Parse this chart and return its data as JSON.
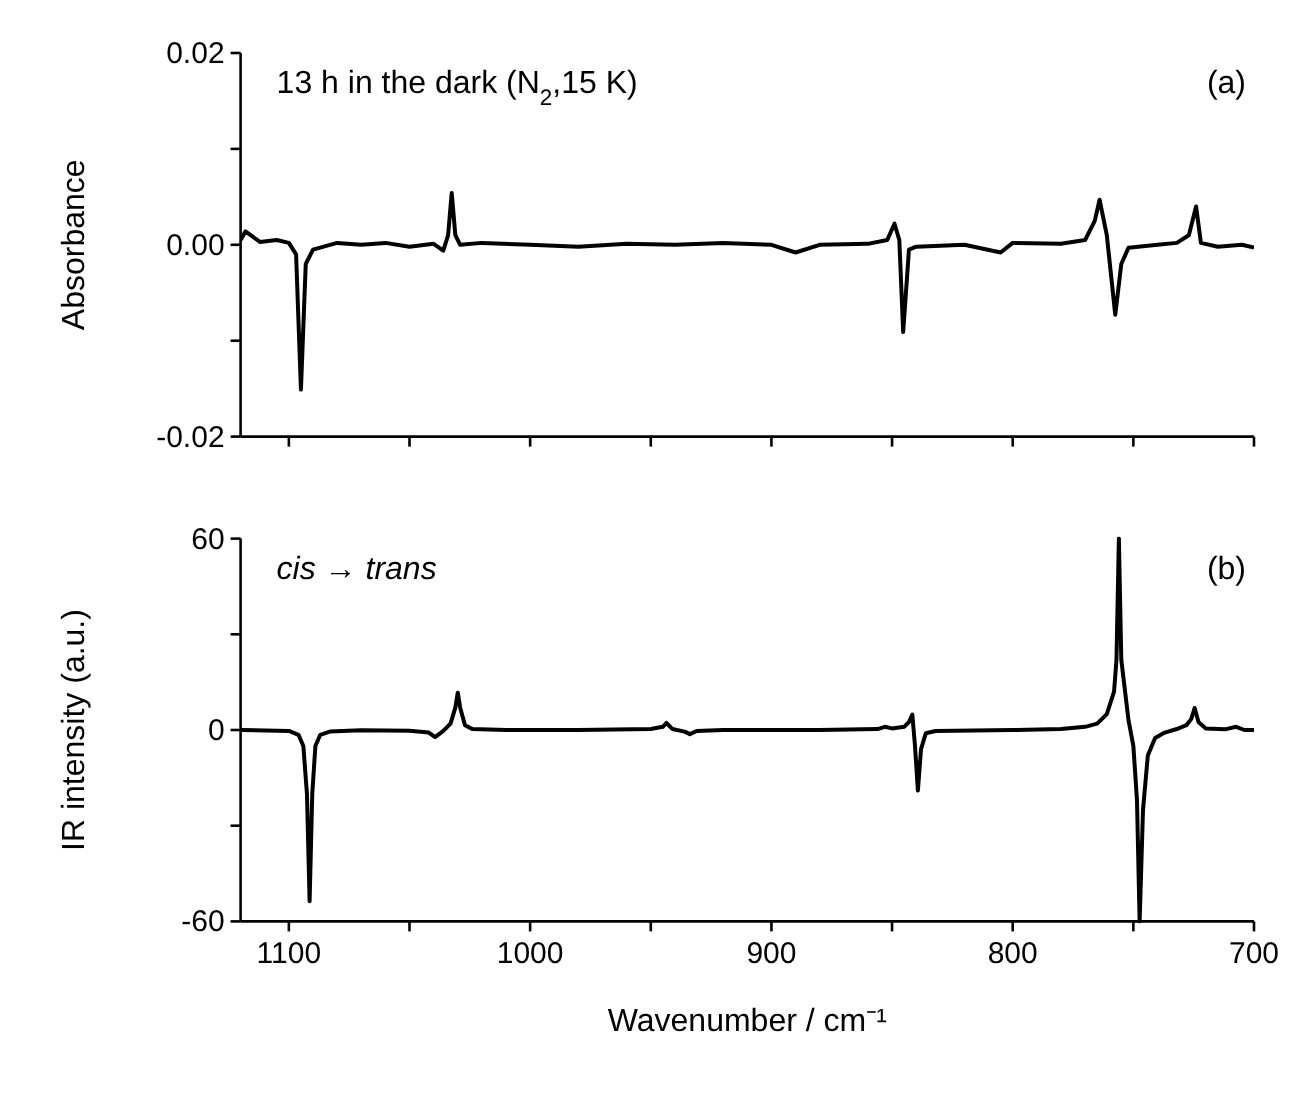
{
  "chart_data": [
    {
      "type": "line",
      "ylabel": "Absorbance",
      "annotations": [
        "13 h in the dark (N$_{2}$,15 K)",
        "(a)"
      ],
      "xlim": [
        1120,
        700
      ],
      "ylim": [
        -0.02,
        0.02
      ],
      "xticks": [
        {
          "value": 1100,
          "label": null
        },
        {
          "value": 1050,
          "label": null
        },
        {
          "value": 1000,
          "label": null
        },
        {
          "value": 950,
          "label": null
        },
        {
          "value": 900,
          "label": null
        },
        {
          "value": 850,
          "label": null
        },
        {
          "value": 800,
          "label": null
        },
        {
          "value": 750,
          "label": null
        },
        {
          "value": 700,
          "label": null
        }
      ],
      "yticks": [
        {
          "value": -0.02,
          "label": "-0.02"
        },
        {
          "value": -0.01,
          "label": null
        },
        {
          "value": 0,
          "label": "0.00"
        },
        {
          "value": 0.01,
          "label": null
        },
        {
          "value": 0.02,
          "label": "0.02"
        }
      ],
      "tick_labels": "y",
      "grid": false,
      "line_style": "solid",
      "series": [
        {
          "color": "#000000",
          "x": [
            1120,
            1118,
            1112,
            1105,
            1100,
            1097,
            1095,
            1093,
            1090,
            1080,
            1070,
            1060,
            1050,
            1040,
            1036,
            1034,
            1032.5,
            1031,
            1029,
            1020,
            1000,
            980,
            960,
            940,
            920,
            900,
            890,
            880,
            860,
            852,
            849,
            847,
            845.4,
            843,
            840,
            820,
            805,
            800,
            780,
            770,
            766,
            764,
            761,
            757.5,
            755,
            752,
            740,
            732,
            727,
            724,
            722,
            715,
            705,
            700
          ],
          "values": [
            0.0005,
            0.0014,
            0.0003,
            0.0005,
            0.0002,
            -0.001,
            -0.0151,
            -0.002,
            -0.0005,
            0.0002,
            0,
            0.0002,
            -0.0002,
            0.0001,
            -0.0006,
            0.001,
            0.0054,
            0.001,
            0,
            0.0002,
            0,
            -0.0002,
            0.0001,
            0,
            0.0002,
            0,
            -0.0008,
            0,
            0.0001,
            0.0005,
            0.0022,
            0.0005,
            -0.0091,
            -0.0005,
            -0.0002,
            0,
            -0.0008,
            0.0002,
            0.0001,
            0.0005,
            0.0025,
            0.0047,
            0.001,
            -0.0073,
            -0.002,
            -0.0003,
            0,
            0.0002,
            0.001,
            0.004,
            0.0002,
            -0.0002,
            0,
            -0.0003
          ]
        }
      ]
    },
    {
      "type": "line",
      "ylabel": "IR intensity (a.u.)",
      "xlabel": "Wavenumber / cm⁻¹",
      "annotations": [
        "cis → trans",
        "(b)"
      ],
      "xlim": [
        1120,
        700
      ],
      "ylim": [
        -60,
        60
      ],
      "xticks": [
        1100,
        {
          "value": 1050,
          "label": null
        },
        1000,
        {
          "value": 950,
          "label": null
        },
        900,
        {
          "value": 850,
          "label": null
        },
        800,
        {
          "value": 750,
          "label": null
        },
        700
      ],
      "yticks": [
        -60,
        {
          "value": -30,
          "label": null
        },
        0,
        {
          "value": 30,
          "label": null
        },
        60
      ],
      "grid": false,
      "line_style": "solid",
      "series": [
        {
          "color": "#000000",
          "x": [
            1120,
            1100,
            1096,
            1094,
            1092.5,
            1091.4,
            1090.3,
            1089,
            1087,
            1083,
            1070,
            1050,
            1042,
            1039.4,
            1036,
            1033,
            1031,
            1030,
            1029,
            1027,
            1024,
            1010,
            980,
            950,
            945,
            943.5,
            941,
            936,
            933.8,
            931,
            920,
            880,
            856,
            853,
            850,
            845,
            843,
            841.6,
            840.5,
            839.3,
            838,
            836,
            832,
            800,
            780,
            770,
            765,
            761,
            758,
            757,
            756,
            755,
            752,
            750,
            748.5,
            747.4,
            746,
            744,
            741,
            737,
            732,
            728,
            726,
            724.6,
            723,
            720,
            712,
            707.4,
            704,
            700
          ],
          "values": [
            0,
            -0.3,
            -1.5,
            -5,
            -20,
            -53.7,
            -20,
            -5,
            -1.5,
            -0.5,
            -0.1,
            -0.2,
            -0.8,
            -2.2,
            -0.3,
            2,
            7,
            11.7,
            7,
            1.5,
            0.3,
            0,
            0,
            0.3,
            1,
            2.2,
            0.3,
            -0.5,
            -1.3,
            -0.3,
            0,
            0,
            0.3,
            1,
            0.5,
            1,
            2.5,
            4.8,
            -5,
            -19,
            -6,
            -1,
            -0.3,
            0,
            0.3,
            1,
            2,
            5,
            12,
            22,
            60,
            22,
            3,
            -5,
            -22,
            -60,
            -25,
            -8,
            -2.5,
            -0.8,
            0.3,
            1.5,
            3.5,
            6.9,
            2.5,
            0.5,
            0.2,
            1,
            0,
            0
          ]
        }
      ]
    }
  ]
}
